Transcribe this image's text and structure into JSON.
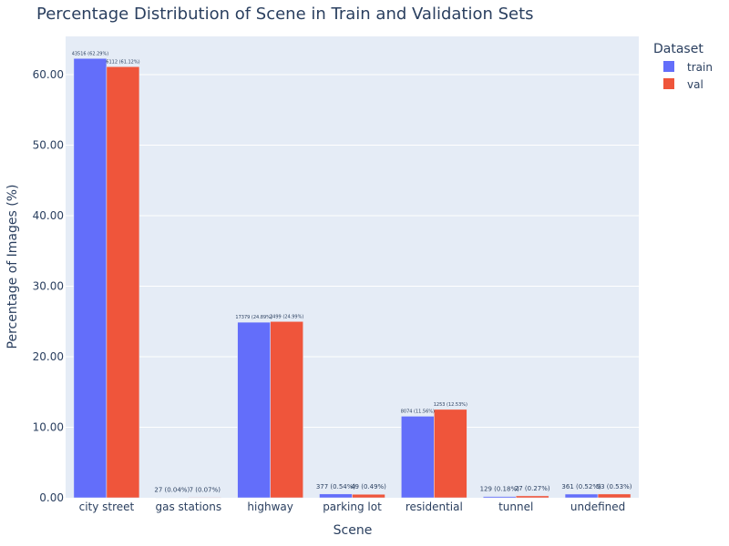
{
  "chart_data": {
    "type": "bar",
    "title": "Percentage Distribution of Scene in Train and Validation Sets",
    "xlabel": "Scene",
    "ylabel": "Percentage of Images (%)",
    "ylim": [
      0,
      65
    ],
    "yticks": [
      "0.00",
      "10.00",
      "20.00",
      "30.00",
      "40.00",
      "50.00",
      "60.00"
    ],
    "grid": true,
    "legend_title": "Dataset",
    "legend_position": "top-right",
    "categories": [
      "city street",
      "gas stations",
      "highway",
      "parking lot",
      "residential",
      "tunnel",
      "undefined"
    ],
    "series": [
      {
        "name": "train",
        "color": "#636EFA",
        "values": [
          62.29,
          0.04,
          24.89,
          0.54,
          11.56,
          0.18,
          0.52
        ],
        "labels": [
          "43516 (62.29%)",
          "27 (0.04%)",
          "17379 (24.89%)",
          "377 (0.54%)",
          "8074 (11.56%)",
          "129 (0.18%)",
          "361 (0.52%)"
        ]
      },
      {
        "name": "val",
        "color": "#EF553B",
        "values": [
          61.12,
          0.07,
          24.99,
          0.49,
          12.53,
          0.27,
          0.53
        ],
        "labels": [
          "6112 (61.12%)",
          "7 (0.07%)",
          "2499 (24.99%)",
          "49 (0.49%)",
          "1253 (12.53%)",
          "27 (0.27%)",
          "53 (0.53%)"
        ]
      }
    ]
  }
}
